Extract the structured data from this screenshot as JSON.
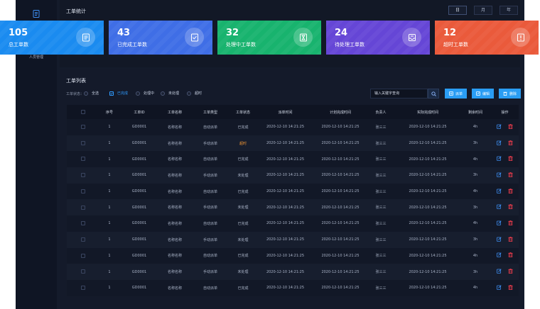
{
  "sidebar": {
    "item_label": "人员管理",
    "icon": "document-icon"
  },
  "header": {
    "title": "工单统计",
    "views": [
      "日",
      "月",
      "年"
    ]
  },
  "colors": {
    "card_total": "#1a8bf0",
    "card_done": "#3f6ee6",
    "card_processing": "#18b36e",
    "card_pending": "#6546d6",
    "card_overdue": "#ea5a3b",
    "accent": "#2f9bff",
    "danger": "#e23a4a",
    "overdue_text": "#f29634"
  },
  "stats": [
    {
      "value": "105",
      "label": "总工单数",
      "icon": "list-icon"
    },
    {
      "value": "43",
      "label": "已完成工单数",
      "icon": "check-icon"
    },
    {
      "value": "32",
      "label": "处理中工单数",
      "icon": "hourglass-icon"
    },
    {
      "value": "24",
      "label": "待处理工单数",
      "icon": "inbox-icon"
    },
    {
      "value": "12",
      "label": "超时工单数",
      "icon": "alarm-icon"
    }
  ],
  "list": {
    "title": "工单列表",
    "filter": {
      "label": "工单状态：",
      "options": [
        "全选",
        "已完成",
        "处理中",
        "未处理",
        "超时"
      ],
      "selected": "已完成"
    },
    "search_placeholder": "输入关键字查询",
    "buttons": {
      "dispatch": "派单",
      "edit": "编辑",
      "delete": "删除"
    },
    "columns": [
      "序号",
      "工单ID",
      "工单名称",
      "工单类型",
      "工单状态",
      "派单时间",
      "计划完成时间",
      "负责人",
      "实际完成时间",
      "剩余时间",
      "操作"
    ],
    "rows": [
      {
        "no": "1",
        "id": "GD0001",
        "name": "名称名称",
        "type": "自动派单",
        "status": "已完成",
        "dispatch_time": "2020-12-10  14:21:25",
        "plan_time": "2020-12-10  14:21:25",
        "owner": "张三三",
        "actual_time": "2020-12-10  14:21:25",
        "remaining": "4h"
      },
      {
        "no": "1",
        "id": "GD0001",
        "name": "名称名称",
        "type": "手动派单",
        "status": "超时",
        "dispatch_time": "2020-12-10  14:21:25",
        "plan_time": "2020-12-10  14:21:25",
        "owner": "张三三",
        "actual_time": "2020-12-10  14:21:25",
        "remaining": "3h"
      },
      {
        "no": "1",
        "id": "GD0001",
        "name": "名称名称",
        "type": "自动派单",
        "status": "已完成",
        "dispatch_time": "2020-12-10  14:21:25",
        "plan_time": "2020-12-10  14:21:25",
        "owner": "张三三",
        "actual_time": "2020-12-10  14:21:25",
        "remaining": "4h"
      },
      {
        "no": "1",
        "id": "GD0001",
        "name": "名称名称",
        "type": "手动派单",
        "status": "未处理",
        "dispatch_time": "2020-12-10  14:21:25",
        "plan_time": "2020-12-10  14:21:25",
        "owner": "张三三",
        "actual_time": "2020-12-10  14:21:25",
        "remaining": "3h"
      },
      {
        "no": "1",
        "id": "GD0001",
        "name": "名称名称",
        "type": "自动派单",
        "status": "已完成",
        "dispatch_time": "2020-12-10  14:21:25",
        "plan_time": "2020-12-10  14:21:25",
        "owner": "张三三",
        "actual_time": "2020-12-10  14:21:25",
        "remaining": "4h"
      },
      {
        "no": "1",
        "id": "GD0001",
        "name": "名称名称",
        "type": "手动派单",
        "status": "未处理",
        "dispatch_time": "2020-12-10  14:21:25",
        "plan_time": "2020-12-10  14:21:25",
        "owner": "张三三",
        "actual_time": "2020-12-10  14:21:25",
        "remaining": "3h"
      },
      {
        "no": "1",
        "id": "GD0001",
        "name": "名称名称",
        "type": "自动派单",
        "status": "已完成",
        "dispatch_time": "2020-12-10  14:21:25",
        "plan_time": "2020-12-10  14:21:25",
        "owner": "张三三",
        "actual_time": "2020-12-10  14:21:25",
        "remaining": "4h"
      },
      {
        "no": "1",
        "id": "GD0001",
        "name": "名称名称",
        "type": "手动派单",
        "status": "未处理",
        "dispatch_time": "2020-12-10  14:21:25",
        "plan_time": "2020-12-10  14:21:25",
        "owner": "张三三",
        "actual_time": "2020-12-10  14:21:25",
        "remaining": "3h"
      },
      {
        "no": "1",
        "id": "GD0001",
        "name": "名称名称",
        "type": "自动派单",
        "status": "已完成",
        "dispatch_time": "2020-12-10  14:21:25",
        "plan_time": "2020-12-10  14:21:25",
        "owner": "张三三",
        "actual_time": "2020-12-10  14:21:25",
        "remaining": "4h"
      },
      {
        "no": "1",
        "id": "GD0001",
        "name": "名称名称",
        "type": "手动派单",
        "status": "未处理",
        "dispatch_time": "2020-12-10  14:21:25",
        "plan_time": "2020-12-10  14:21:25",
        "owner": "张三三",
        "actual_time": "2020-12-10  14:21:25",
        "remaining": "3h"
      },
      {
        "no": "1",
        "id": "GD0001",
        "name": "名称名称",
        "type": "自动派单",
        "status": "已完成",
        "dispatch_time": "2020-12-10  14:21:25",
        "plan_time": "2020-12-10  14:21:25",
        "owner": "张三三",
        "actual_time": "2020-12-10  14:21:25",
        "remaining": "4h"
      }
    ]
  }
}
